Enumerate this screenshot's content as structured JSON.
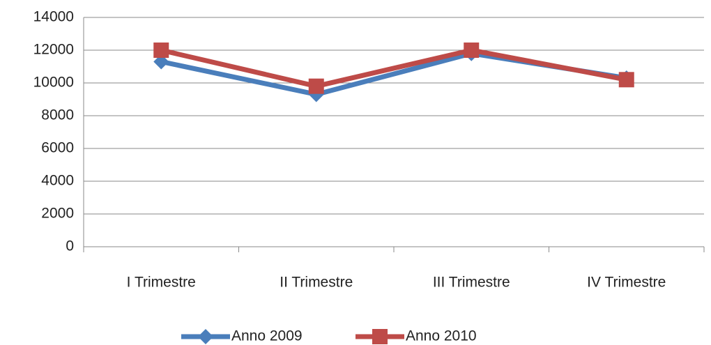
{
  "chart_data": {
    "type": "line",
    "categories": [
      "I Trimestre",
      "II Trimestre",
      "III Trimestre",
      "IV Trimestre"
    ],
    "series": [
      {
        "name": "Anno 2009",
        "color": "#4a7ebb",
        "marker": "diamond",
        "values": [
          11300,
          9300,
          11800,
          10300
        ]
      },
      {
        "name": "Anno 2010",
        "color": "#be4b48",
        "marker": "square",
        "values": [
          12000,
          9800,
          12000,
          10200
        ]
      }
    ],
    "ylim": [
      0,
      14000
    ],
    "yticks": [
      0,
      2000,
      4000,
      6000,
      8000,
      10000,
      12000,
      14000
    ],
    "grid": true,
    "legend": "bottom"
  }
}
